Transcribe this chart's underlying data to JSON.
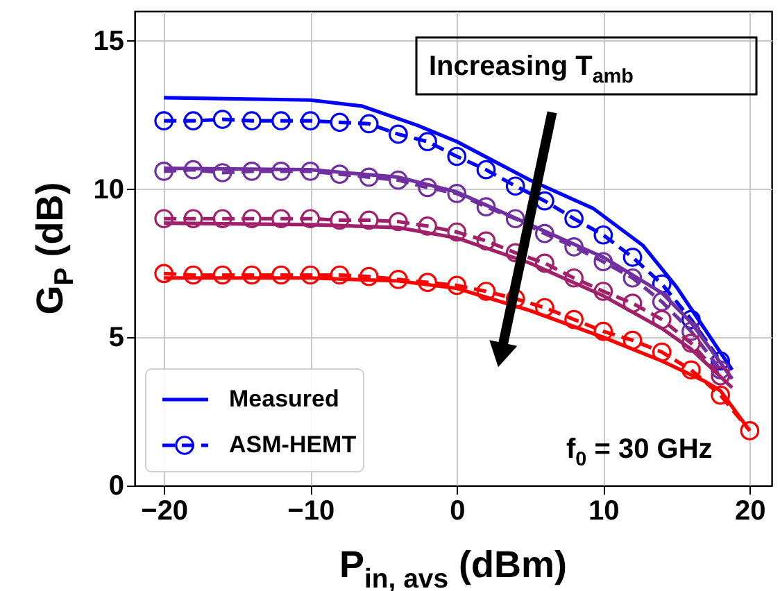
{
  "chart_data": {
    "type": "line",
    "xlabel": "P$_{in, avs}$ (dBm)",
    "ylabel": "G$_{P}$ (dB)",
    "xlim": [
      -22,
      21.5
    ],
    "ylim": [
      0,
      16
    ],
    "xticks": [
      {
        "value": -20,
        "label": "−20"
      },
      {
        "value": -10,
        "label": "−10"
      },
      0,
      10,
      20
    ],
    "yticks": [
      0,
      5,
      10,
      15
    ],
    "grid": true,
    "legend": "bottom left",
    "series": [
      {
        "name": "Measured",
        "color": "#0000ff",
        "line_style": "solid",
        "marker": "none",
        "x": [
          -20,
          -10,
          -6.5,
          -2.7,
          0,
          5,
          9.3,
          12.7,
          15,
          18.8
        ],
        "values": [
          13.08,
          13.0,
          12.8,
          12.15,
          11.6,
          10.3,
          9.35,
          8.1,
          6.7,
          3.9
        ]
      },
      {
        "name": "ASM-HEMT",
        "color": "#0000ff",
        "line_style": "dashed",
        "marker": "circle",
        "x": [
          -20,
          -18,
          -16,
          -14,
          -12,
          -10,
          -8,
          -6,
          -4,
          -2,
          0,
          2,
          4,
          6,
          8,
          10,
          12,
          14,
          16,
          18
        ],
        "values": [
          12.3,
          12.3,
          12.35,
          12.3,
          12.3,
          12.3,
          12.25,
          12.2,
          11.85,
          11.6,
          11.1,
          10.65,
          10.1,
          9.6,
          9.0,
          8.45,
          7.7,
          6.8,
          5.6,
          4.2
        ]
      },
      {
        "color": "#7030a0",
        "line_style": "solid",
        "marker": "none",
        "x": [
          -20,
          -10,
          -4,
          0,
          5,
          10,
          14,
          16,
          18.8
        ],
        "values": [
          10.7,
          10.65,
          10.4,
          9.9,
          8.8,
          7.7,
          6.5,
          5.5,
          3.6
        ]
      },
      {
        "color": "#7030a0",
        "line_style": "dashed",
        "marker": "circle",
        "x": [
          -20,
          -18,
          -16,
          -14,
          -12,
          -10,
          -8,
          -6,
          -4,
          -2,
          0,
          2,
          4,
          6,
          8,
          10,
          12,
          14,
          16,
          18
        ],
        "values": [
          10.6,
          10.65,
          10.55,
          10.6,
          10.6,
          10.6,
          10.5,
          10.4,
          10.3,
          10.05,
          9.85,
          9.4,
          9.0,
          8.5,
          8.05,
          7.55,
          7.0,
          6.2,
          5.2,
          3.9
        ]
      },
      {
        "color": "#a0206a",
        "line_style": "solid",
        "marker": "none",
        "x": [
          -20,
          -10,
          -4,
          0,
          5,
          10,
          14,
          16,
          18.8
        ],
        "values": [
          8.85,
          8.8,
          8.7,
          8.35,
          7.5,
          6.4,
          5.3,
          4.6,
          3.3
        ]
      },
      {
        "color": "#a0206a",
        "line_style": "dashed",
        "marker": "circle",
        "x": [
          -20,
          -18,
          -16,
          -14,
          -12,
          -10,
          -8,
          -6,
          -4,
          -2,
          0,
          2,
          4,
          6,
          8,
          10,
          12,
          14,
          16,
          18
        ],
        "values": [
          9.0,
          9.0,
          9.0,
          9.0,
          9.0,
          9.0,
          8.95,
          8.95,
          8.9,
          8.75,
          8.55,
          8.25,
          7.85,
          7.5,
          7.0,
          6.55,
          6.15,
          5.6,
          4.8,
          3.7
        ]
      },
      {
        "color": "#ff0000",
        "line_style": "solid",
        "marker": "none",
        "x": [
          -20,
          -10,
          -4,
          0,
          5,
          10,
          14,
          17,
          18,
          20
        ],
        "values": [
          7.0,
          7.0,
          6.9,
          6.65,
          5.9,
          5.0,
          4.2,
          3.5,
          3.2,
          1.85
        ]
      },
      {
        "color": "#ff0000",
        "line_style": "dashed",
        "marker": "circle",
        "x": [
          -20,
          -18,
          -16,
          -14,
          -12,
          -10,
          -8,
          -6,
          -4,
          -2,
          0,
          2,
          4,
          6,
          8,
          10,
          12,
          14,
          16,
          18,
          20
        ],
        "values": [
          7.15,
          7.1,
          7.1,
          7.1,
          7.1,
          7.1,
          7.1,
          7.05,
          6.95,
          6.85,
          6.75,
          6.55,
          6.3,
          6.0,
          5.6,
          5.2,
          4.9,
          4.5,
          3.9,
          3.05,
          1.85
        ]
      }
    ],
    "annotations": [
      {
        "text": "Increasing T$_{amb}$",
        "x": 3,
        "y": 4.4
      },
      "f$_{0}$ = 30 GHz"
    ]
  }
}
